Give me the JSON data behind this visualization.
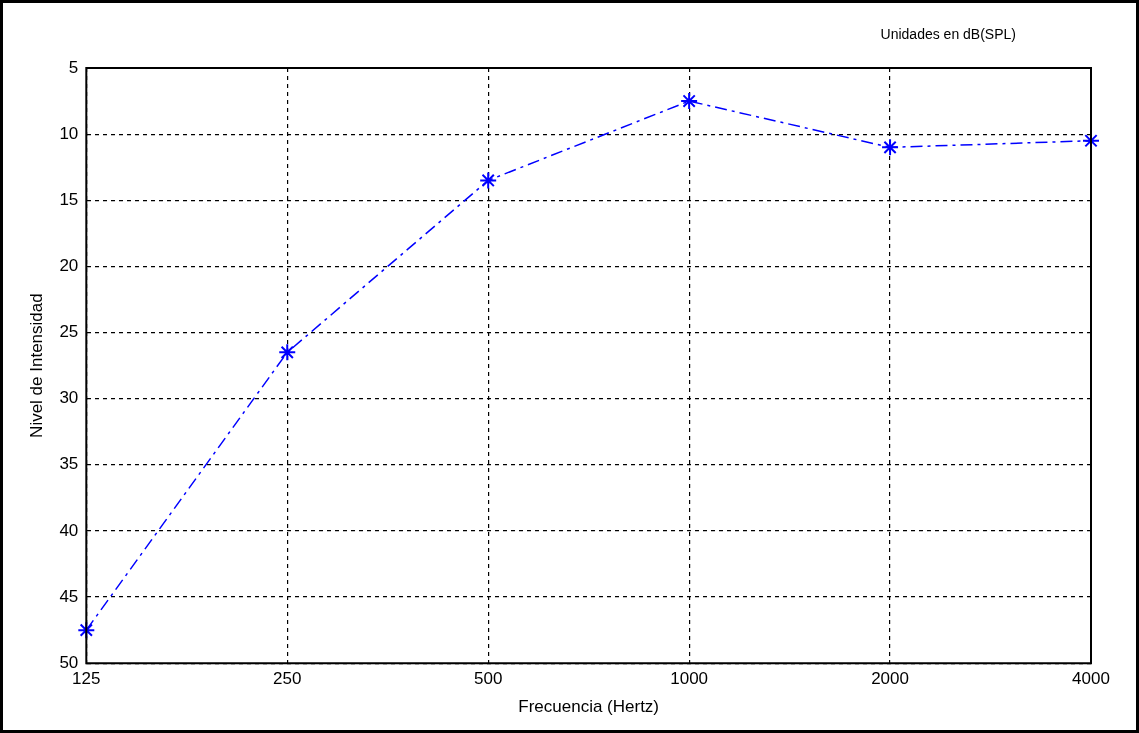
{
  "chart_data": {
    "type": "line",
    "xlabel": "Frecuencia (Hertz)",
    "ylabel": "Nivel de Intensidad",
    "annotations": [
      "Unidades en dB(SPL)"
    ],
    "categories": [
      "125",
      "250",
      "500",
      "1000",
      "2000",
      "4000"
    ],
    "series": [
      {
        "color": "#0000ff",
        "values": [
          47.5,
          26.5,
          13.5,
          7.5,
          11,
          10.5
        ]
      }
    ],
    "ylim": [
      50,
      5
    ],
    "yticks": [
      5,
      10,
      15,
      20,
      25,
      30,
      35,
      40,
      45,
      50
    ],
    "grid": true,
    "marker": "cross",
    "line_style": "dashed",
    "legend": false
  }
}
